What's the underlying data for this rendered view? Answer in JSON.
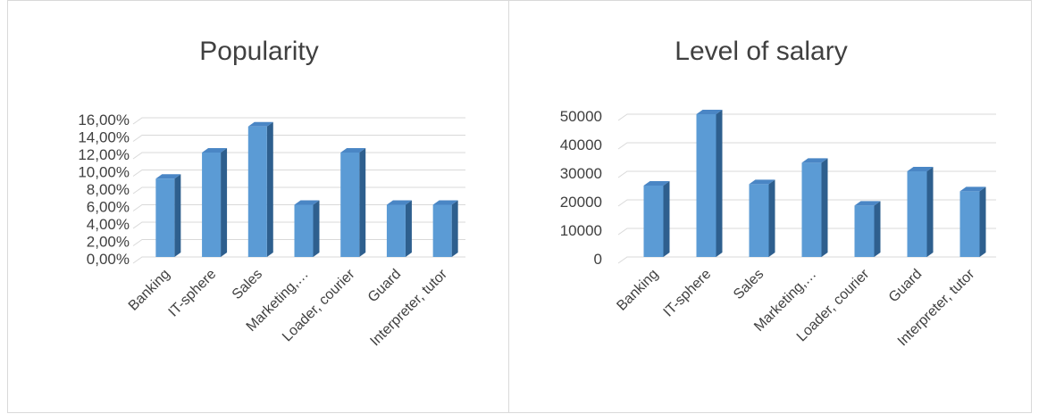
{
  "chart_data": [
    {
      "type": "bar",
      "title": "Popularity",
      "categories": [
        "Banking",
        "IT-sphere",
        "Sales",
        "Marketing,…",
        "Loader, courier",
        "Guard",
        "Interpreter, tutor"
      ],
      "values": [
        9.0,
        12.0,
        15.0,
        6.0,
        12.0,
        6.0,
        6.0
      ],
      "ylim": [
        0,
        16
      ],
      "yticks": [
        "0,00%",
        "2,00%",
        "4,00%",
        "6,00%",
        "8,00%",
        "10,00%",
        "12,00%",
        "14,00%",
        "16,00%"
      ],
      "grid": true,
      "bar_color": "#5B9BD5",
      "xlabel": "",
      "ylabel": ""
    },
    {
      "type": "bar",
      "title": "Level of salary",
      "categories": [
        "Banking",
        "IT-sphere",
        "Sales",
        "Marketing,…",
        "Loader, courier",
        "Guard",
        "Interpreter, tutor"
      ],
      "values": [
        25000,
        50000,
        25500,
        33000,
        18000,
        30000,
        23000
      ],
      "ylim": [
        0,
        50000
      ],
      "yticks": [
        "0",
        "10000",
        "20000",
        "30000",
        "40000",
        "50000"
      ],
      "grid": true,
      "bar_color": "#5B9BD5",
      "xlabel": "",
      "ylabel": ""
    }
  ]
}
